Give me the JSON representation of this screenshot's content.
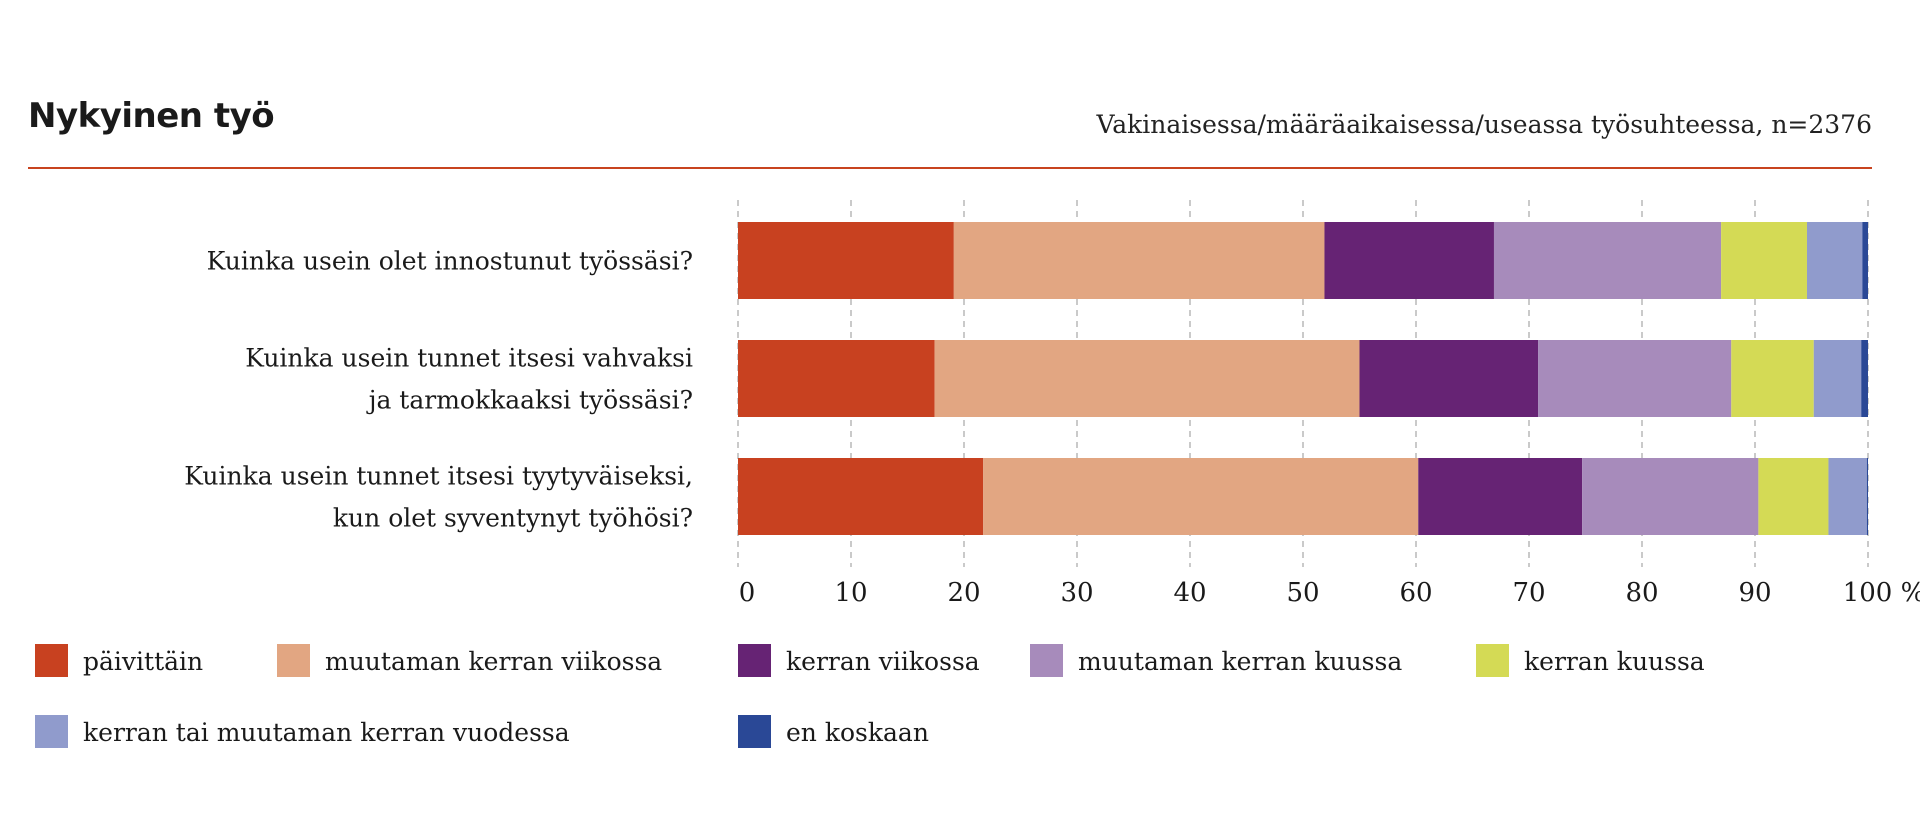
{
  "header": {
    "title": "Nykyinen työ",
    "subtitle": "Vakinaisessa/määräaikaisessa/useassa työsuhteessa, n=2376",
    "rule_color": "#c8441f"
  },
  "chart_data": {
    "type": "bar",
    "orientation": "horizontal",
    "stacked": true,
    "categories": [
      [
        "Kuinka usein olet innostunut työssäsi?"
      ],
      [
        "Kuinka usein tunnet itsesi vahvaksi",
        "ja tarmokkaaksi työssäsi?"
      ],
      [
        "Kuinka usein tunnet itsesi tyytyväiseksi,",
        "kun olet syventynyt työhösi?"
      ]
    ],
    "series": [
      {
        "name": "päivittäin",
        "color": "#c84120",
        "values": [
          19.1,
          17.4,
          21.7
        ]
      },
      {
        "name": "muutaman kerran viikossa",
        "color": "#e2a682",
        "values": [
          32.8,
          37.6,
          38.5
        ]
      },
      {
        "name": "kerran viikossa",
        "color": "#662374",
        "values": [
          15.0,
          15.8,
          14.5
        ]
      },
      {
        "name": "muutaman kerran kuussa",
        "color": "#a78bbb",
        "values": [
          20.1,
          17.1,
          15.6
        ]
      },
      {
        "name": "kerran kuussa",
        "color": "#d4da55",
        "values": [
          7.6,
          7.3,
          6.2
        ]
      },
      {
        "name": "kerran tai muutaman kerran vuodessa",
        "color": "#909bcc",
        "values": [
          4.9,
          4.2,
          3.4
        ]
      },
      {
        "name": "en koskaan",
        "color": "#2a4896",
        "values": [
          0.5,
          0.6,
          0.1
        ]
      }
    ],
    "xlim": [
      0,
      100
    ],
    "xticks": [
      "0",
      "10",
      "20",
      "30",
      "40",
      "50",
      "60",
      "70",
      "80",
      "90",
      "100 %"
    ],
    "grid": "vertical dashed",
    "legend_position": "bottom"
  }
}
